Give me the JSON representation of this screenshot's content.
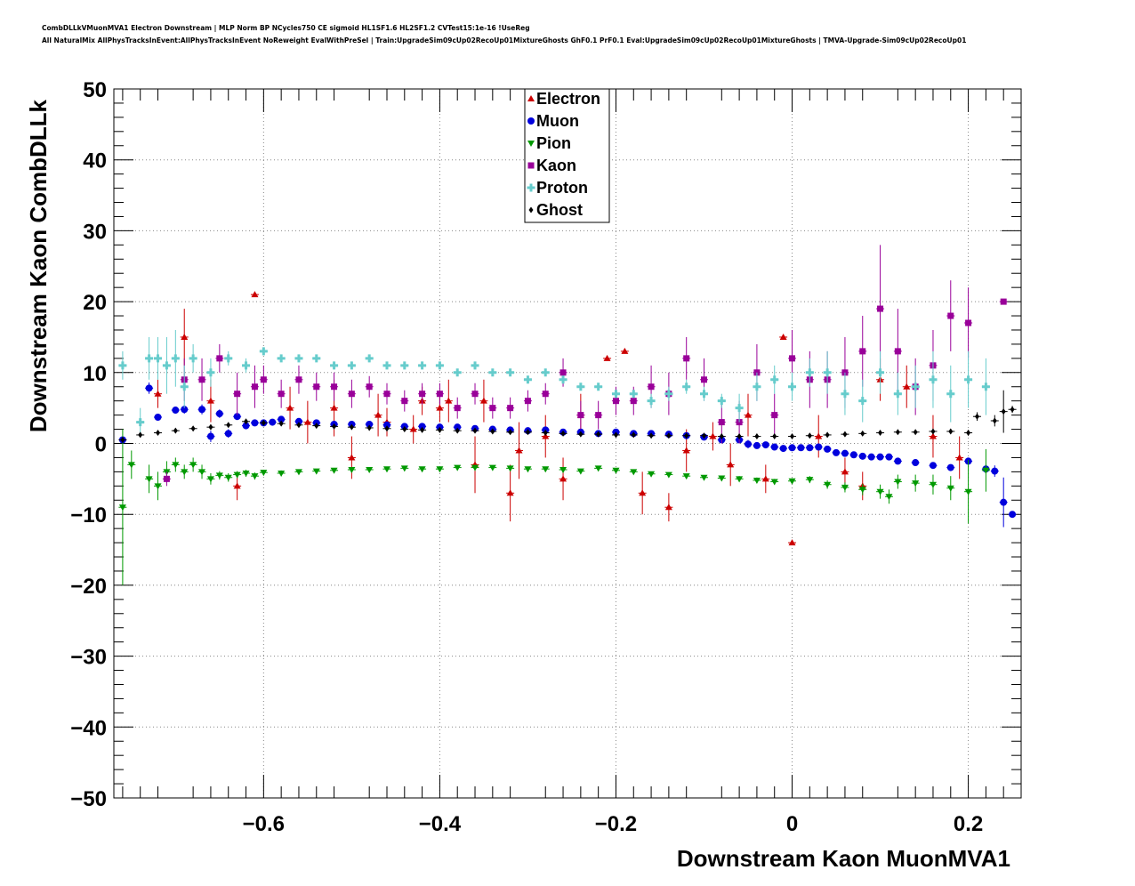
{
  "header": {
    "title_line1": "CombDLLkVMuonMVA1 Electron Downstream | MLP Norm BP NCycles750 CE sigmoid HL1SF1.6 HL2SF1.2 CVTest15:1e-16 !UseReg",
    "title_line2": "All NaturalMix AllPhysTracksInEvent:AllPhysTracksInEvent NoReweight EvalWithPreSel | Train:UpgradeSim09cUp02RecoUp01MixtureGhosts GhF0.1 PrF0.1 Eval:UpgradeSim09cUp02RecoUp01MixtureGhosts | TMVA-Upgrade-Sim09cUp02RecoUp01"
  },
  "chart_data": {
    "type": "scatter",
    "xlabel": "Downstream Kaon MuonMVA1",
    "ylabel": "Downstream Kaon CombDLLk",
    "xlim": [
      -0.77,
      0.26
    ],
    "ylim": [
      -50,
      50
    ],
    "xticks": [
      -0.6,
      -0.4,
      -0.2,
      0,
      0.2
    ],
    "xtick_labels": [
      "−0.6",
      "−0.4",
      "−0.2",
      "0",
      "0.2"
    ],
    "yticks": [
      -50,
      -40,
      -30,
      -20,
      -10,
      0,
      10,
      20,
      30,
      40,
      50
    ],
    "ytick_labels": [
      "−50",
      "−40",
      "−30",
      "−20",
      "−10",
      "0",
      "10",
      "20",
      "30",
      "40",
      "50"
    ],
    "grid": true,
    "legend_position": "top-center",
    "series": [
      {
        "name": "Electron",
        "color": "#cc0000",
        "marker": "triangle-up",
        "x": [
          -0.72,
          -0.69,
          -0.66,
          -0.63,
          -0.61,
          -0.57,
          -0.55,
          -0.52,
          -0.5,
          -0.47,
          -0.46,
          -0.43,
          -0.42,
          -0.4,
          -0.39,
          -0.36,
          -0.35,
          -0.32,
          -0.31,
          -0.28,
          -0.26,
          -0.24,
          -0.21,
          -0.19,
          -0.17,
          -0.14,
          -0.12,
          -0.09,
          -0.07,
          -0.05,
          -0.03,
          -0.01,
          0.0,
          0.03,
          0.06,
          0.08,
          0.1,
          0.13,
          0.16,
          0.19
        ],
        "y": [
          7,
          15,
          6,
          -6,
          21,
          5,
          3,
          5,
          -2,
          4,
          3,
          2,
          6,
          5,
          6,
          -3,
          6,
          -7,
          -1,
          1,
          -5,
          4,
          12,
          13,
          -7,
          -9,
          -1,
          1,
          -3,
          4,
          -5,
          15,
          -14,
          1,
          -4,
          -6,
          9,
          8,
          1,
          -2
        ],
        "err": [
          2,
          4,
          3,
          2,
          0.3,
          3,
          3,
          4,
          3,
          3,
          2,
          2,
          2,
          2,
          3,
          4,
          3,
          4,
          4,
          3,
          3,
          3,
          0.3,
          0.3,
          3,
          2,
          3,
          2,
          3,
          3,
          2,
          0.3,
          0.3,
          3,
          2,
          2,
          3,
          3,
          3,
          3
        ]
      },
      {
        "name": "Muon",
        "color": "#0000dd",
        "marker": "circle",
        "x": [
          -0.76,
          -0.73,
          -0.72,
          -0.7,
          -0.69,
          -0.67,
          -0.66,
          -0.65,
          -0.64,
          -0.63,
          -0.62,
          -0.61,
          -0.6,
          -0.59,
          -0.58,
          -0.56,
          -0.54,
          -0.52,
          -0.5,
          -0.48,
          -0.46,
          -0.44,
          -0.42,
          -0.4,
          -0.38,
          -0.36,
          -0.34,
          -0.32,
          -0.3,
          -0.28,
          -0.26,
          -0.24,
          -0.22,
          -0.2,
          -0.18,
          -0.16,
          -0.14,
          -0.12,
          -0.1,
          -0.08,
          -0.06,
          -0.05,
          -0.04,
          -0.03,
          -0.02,
          -0.01,
          0.0,
          0.01,
          0.02,
          0.03,
          0.04,
          0.05,
          0.06,
          0.07,
          0.08,
          0.09,
          0.1,
          0.11,
          0.12,
          0.14,
          0.16,
          0.18,
          0.2,
          0.22,
          0.23,
          0.24,
          0.25
        ],
        "y": [
          0.5,
          7.8,
          3.7,
          4.7,
          4.8,
          4.8,
          1,
          4.2,
          1.4,
          3.8,
          2.5,
          2.9,
          2.9,
          3,
          3.4,
          3.1,
          2.9,
          2.7,
          2.7,
          2.7,
          2.6,
          2.4,
          2.4,
          2.3,
          2.3,
          2.1,
          2,
          1.9,
          1.8,
          1.9,
          1.6,
          1.6,
          1.4,
          1.6,
          1.4,
          1.4,
          1.3,
          1.1,
          0.9,
          0.5,
          0.5,
          -0.1,
          -0.3,
          -0.2,
          -0.5,
          -0.7,
          -0.6,
          -0.6,
          -0.6,
          -0.5,
          -0.8,
          -1.3,
          -1.4,
          -1.6,
          -1.8,
          -1.9,
          -1.9,
          -1.9,
          -2.5,
          -2.7,
          -3.1,
          -3.4,
          -2.5,
          -3.6,
          -3.9,
          -8.3,
          -10
        ],
        "err": [
          0.3,
          0.8,
          0.4,
          0.5,
          0.6,
          0.7,
          0.8,
          0.6,
          0.6,
          0.4,
          0.3,
          0.3,
          0.3,
          0.3,
          0.3,
          0.3,
          0.3,
          0.3,
          0.3,
          0.3,
          0.3,
          0.3,
          0.3,
          0.3,
          0.3,
          0.3,
          0.3,
          0.3,
          0.3,
          0.3,
          0.3,
          0.3,
          0.3,
          0.3,
          0.3,
          0.3,
          0.3,
          0.3,
          0.3,
          0.3,
          0.3,
          0.6,
          0.3,
          0.3,
          0.3,
          0.3,
          0.3,
          0.3,
          0.3,
          0.3,
          0.3,
          0.3,
          0.3,
          0.3,
          0.3,
          0.3,
          0.3,
          0.3,
          0.4,
          0.4,
          0.4,
          0.4,
          0.5,
          0.6,
          0.8,
          3.5,
          0.3
        ]
      },
      {
        "name": "Pion",
        "color": "#009900",
        "marker": "triangle-down",
        "x": [
          -0.76,
          -0.75,
          -0.73,
          -0.72,
          -0.71,
          -0.7,
          -0.69,
          -0.68,
          -0.67,
          -0.66,
          -0.65,
          -0.64,
          -0.63,
          -0.62,
          -0.61,
          -0.6,
          -0.58,
          -0.56,
          -0.54,
          -0.52,
          -0.5,
          -0.48,
          -0.46,
          -0.44,
          -0.42,
          -0.4,
          -0.38,
          -0.36,
          -0.34,
          -0.32,
          -0.3,
          -0.28,
          -0.26,
          -0.24,
          -0.22,
          -0.2,
          -0.18,
          -0.16,
          -0.14,
          -0.12,
          -0.1,
          -0.08,
          -0.06,
          -0.04,
          -0.02,
          0.0,
          0.02,
          0.04,
          0.06,
          0.08,
          0.1,
          0.11,
          0.12,
          0.14,
          0.16,
          0.18,
          0.2,
          0.22
        ],
        "y": [
          -9,
          -3,
          -5,
          -6,
          -4,
          -3,
          -4,
          -3,
          -4,
          -5,
          -4.5,
          -4.8,
          -4.4,
          -4.2,
          -4.6,
          -4.1,
          -4.2,
          -4,
          -3.9,
          -3.8,
          -3.7,
          -3.7,
          -3.6,
          -3.5,
          -3.6,
          -3.6,
          -3.4,
          -3.4,
          -3.4,
          -3.5,
          -3.6,
          -3.6,
          -3.7,
          -3.9,
          -3.5,
          -3.8,
          -4,
          -4.3,
          -4.4,
          -4.6,
          -4.8,
          -4.9,
          -5,
          -5.2,
          -5.4,
          -5.3,
          -5.1,
          -5.8,
          -6.2,
          -6.5,
          -6.8,
          -7.5,
          -5.4,
          -5.6,
          -5.8,
          -6.3,
          -6.8,
          -3.8
        ],
        "err": [
          11,
          2,
          2,
          2,
          1.5,
          1,
          1,
          1,
          1,
          0.8,
          0.6,
          0.6,
          0.5,
          0.5,
          0.5,
          0.4,
          0.4,
          0.3,
          0.3,
          0.3,
          0.3,
          0.3,
          0.3,
          0.3,
          0.3,
          0.3,
          0.3,
          0.3,
          0.3,
          0.3,
          0.3,
          0.3,
          0.3,
          0.3,
          0.3,
          0.3,
          0.3,
          0.3,
          0.3,
          0.3,
          0.3,
          0.3,
          0.4,
          0.4,
          0.4,
          0.4,
          0.5,
          0.6,
          0.7,
          0.8,
          1,
          1,
          1,
          1.2,
          1.4,
          1.7,
          4.5,
          3
        ]
      },
      {
        "name": "Kaon",
        "color": "#990099",
        "marker": "square",
        "x": [
          -0.71,
          -0.69,
          -0.67,
          -0.65,
          -0.63,
          -0.61,
          -0.6,
          -0.58,
          -0.56,
          -0.54,
          -0.52,
          -0.5,
          -0.48,
          -0.46,
          -0.44,
          -0.42,
          -0.4,
          -0.38,
          -0.36,
          -0.34,
          -0.32,
          -0.3,
          -0.28,
          -0.26,
          -0.24,
          -0.22,
          -0.2,
          -0.18,
          -0.16,
          -0.14,
          -0.12,
          -0.1,
          -0.08,
          -0.06,
          -0.04,
          -0.02,
          0.0,
          0.02,
          0.04,
          0.06,
          0.08,
          0.1,
          0.12,
          0.14,
          0.16,
          0.18,
          0.2,
          0.24
        ],
        "y": [
          -5,
          9,
          9,
          12,
          7,
          8,
          9,
          7,
          9,
          8,
          8,
          7,
          8,
          7,
          6,
          7,
          7,
          5,
          7,
          5,
          5,
          6,
          7,
          10,
          4,
          4,
          6,
          6,
          8,
          7,
          12,
          9,
          3,
          3,
          10,
          4,
          12,
          9,
          9,
          10,
          13,
          19,
          13,
          8,
          11,
          18,
          17,
          20
        ],
        "err": [
          1,
          3,
          3,
          2,
          3,
          3,
          2,
          2,
          2,
          2,
          2,
          2,
          1.5,
          1.5,
          1.5,
          1.5,
          1.5,
          1.5,
          1.5,
          1.5,
          1.5,
          1.5,
          1.5,
          2,
          2,
          2,
          2,
          2,
          3,
          3,
          3,
          3,
          3,
          3,
          4,
          3,
          4,
          4,
          4,
          5,
          5,
          9,
          6,
          4,
          5,
          5,
          5,
          0.3
        ]
      },
      {
        "name": "Proton",
        "color": "#66cccc",
        "marker": "cross",
        "x": [
          -0.76,
          -0.74,
          -0.73,
          -0.72,
          -0.71,
          -0.7,
          -0.69,
          -0.68,
          -0.66,
          -0.64,
          -0.62,
          -0.6,
          -0.58,
          -0.56,
          -0.54,
          -0.52,
          -0.5,
          -0.48,
          -0.46,
          -0.44,
          -0.42,
          -0.4,
          -0.38,
          -0.36,
          -0.34,
          -0.32,
          -0.3,
          -0.28,
          -0.26,
          -0.24,
          -0.22,
          -0.2,
          -0.18,
          -0.16,
          -0.14,
          -0.12,
          -0.1,
          -0.08,
          -0.06,
          -0.04,
          -0.02,
          0.0,
          0.02,
          0.04,
          0.06,
          0.08,
          0.1,
          0.12,
          0.14,
          0.16,
          0.18,
          0.2,
          0.22
        ],
        "y": [
          11,
          3,
          12,
          12,
          11,
          12,
          8,
          12,
          10,
          12,
          11,
          13,
          12,
          12,
          12,
          11,
          11,
          12,
          11,
          11,
          11,
          11,
          10,
          11,
          10,
          10,
          9,
          10,
          9,
          8,
          8,
          7,
          7,
          6,
          7,
          8,
          7,
          6,
          5,
          8,
          9,
          8,
          10,
          10,
          7,
          6,
          10,
          7,
          8,
          9,
          7,
          9,
          8
        ],
        "err": [
          2,
          2,
          3,
          3,
          4,
          4,
          3,
          2,
          2,
          1,
          1,
          0.5,
          0.5,
          0.5,
          0.5,
          0.5,
          0.5,
          0.5,
          0.5,
          0.5,
          0.5,
          0.5,
          0.5,
          0.5,
          0.5,
          0.5,
          0.5,
          0.5,
          0.5,
          0.5,
          0.5,
          0.5,
          0.5,
          1,
          1,
          1,
          1,
          1,
          2,
          2,
          2,
          2,
          2,
          3,
          3,
          3,
          3,
          3,
          3,
          4,
          4,
          4,
          4
        ]
      },
      {
        "name": "Ghost",
        "color": "#000000",
        "marker": "diamond",
        "x": [
          -0.76,
          -0.74,
          -0.72,
          -0.7,
          -0.68,
          -0.66,
          -0.64,
          -0.62,
          -0.6,
          -0.58,
          -0.56,
          -0.54,
          -0.52,
          -0.5,
          -0.48,
          -0.46,
          -0.44,
          -0.42,
          -0.4,
          -0.38,
          -0.36,
          -0.34,
          -0.32,
          -0.3,
          -0.28,
          -0.26,
          -0.24,
          -0.22,
          -0.2,
          -0.18,
          -0.16,
          -0.14,
          -0.12,
          -0.1,
          -0.08,
          -0.06,
          -0.04,
          -0.02,
          0.0,
          0.02,
          0.04,
          0.06,
          0.08,
          0.1,
          0.12,
          0.14,
          0.16,
          0.18,
          0.2,
          0.21,
          0.23,
          0.24,
          0.25
        ],
        "y": [
          0.5,
          1.2,
          1.5,
          1.8,
          2.1,
          2.3,
          2.6,
          3.1,
          2.9,
          2.8,
          2.6,
          2.5,
          2.4,
          2.3,
          2.2,
          2.1,
          2,
          1.9,
          1.9,
          1.8,
          1.8,
          1.7,
          1.6,
          1.6,
          1.5,
          1.4,
          1.3,
          1.3,
          1.2,
          1.2,
          1.1,
          1.1,
          1.1,
          1.1,
          1,
          1,
          1,
          1,
          1,
          1.1,
          1.2,
          1.3,
          1.4,
          1.5,
          1.6,
          1.6,
          1.7,
          1.7,
          1.5,
          3.8,
          3.2,
          4.5,
          4.8
        ],
        "err": [
          0.3,
          0.3,
          0.3,
          0.2,
          0.2,
          0.2,
          0.2,
          0.2,
          0.2,
          0.2,
          0.2,
          0.2,
          0.2,
          0.2,
          0.2,
          0.2,
          0.2,
          0.2,
          0.2,
          0.2,
          0.2,
          0.2,
          0.2,
          0.2,
          0.2,
          0.2,
          0.2,
          0.2,
          0.2,
          0.2,
          0.2,
          0.2,
          0.2,
          0.2,
          0.2,
          0.2,
          0.2,
          0.2,
          0.2,
          0.2,
          0.2,
          0.2,
          0.2,
          0.2,
          0.2,
          0.3,
          0.3,
          0.3,
          0.4,
          0.6,
          0.8,
          3,
          0.5
        ]
      }
    ]
  }
}
